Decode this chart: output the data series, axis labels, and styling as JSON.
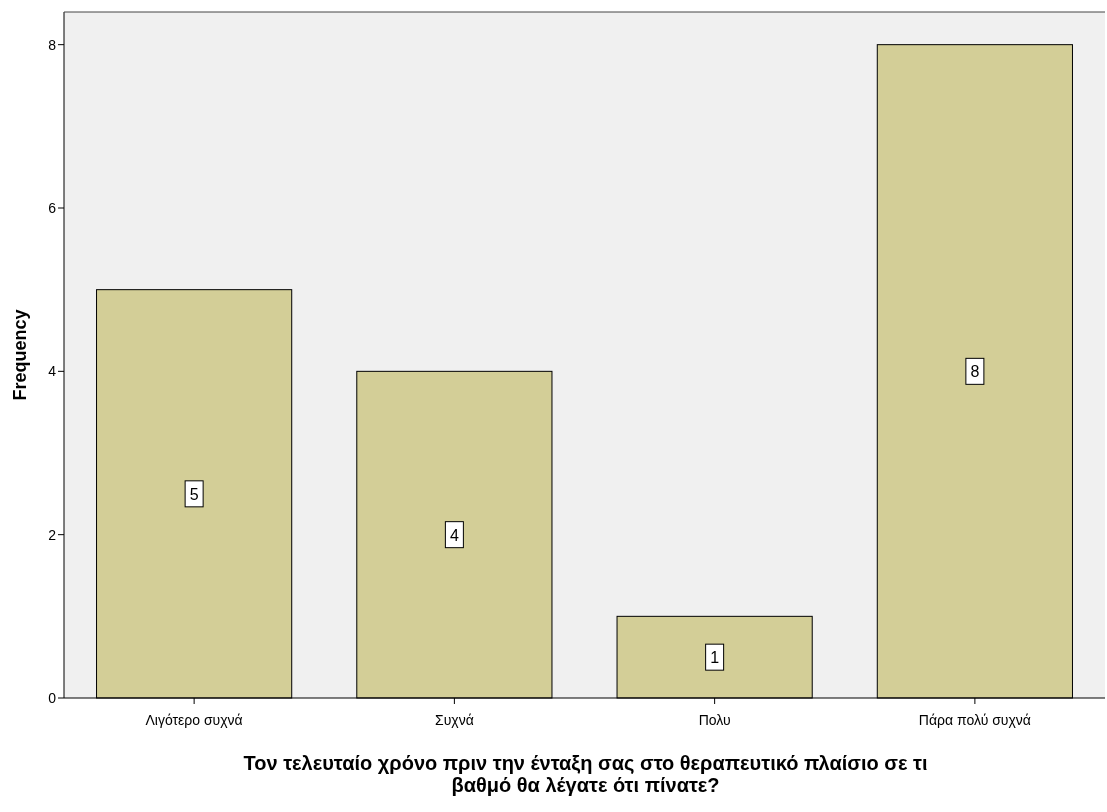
{
  "chart_data": {
    "type": "bar",
    "xlabel": "Τον τελευταίο χρόνο πριν την ένταξη σας στο θεραπευτικό πλαίσιο σε τι βαθμό θα λέγατε ότι πίνατε?",
    "ylabel": "Frequency",
    "categories": [
      "Λιγότερο συχνά",
      "Συχνά",
      "Πολυ",
      "Πάρα πολύ συχνά"
    ],
    "values": [
      5,
      4,
      1,
      8
    ],
    "color": "#d3ce97",
    "ylim": [
      0,
      8.4
    ],
    "yticks": [
      0,
      2,
      4,
      6,
      8
    ],
    "data_labels": true,
    "grid": false
  }
}
